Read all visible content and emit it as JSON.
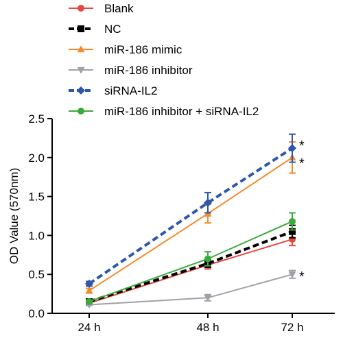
{
  "chart_data": {
    "type": "line",
    "categories": [
      "24 h",
      "48 h",
      "72 h"
    ],
    "ylabel": "OD Value (570nm)",
    "ylim": [
      0,
      2.5
    ],
    "yticks": [
      "0.0",
      "0.5",
      "1.0",
      "1.5",
      "2.0",
      "2.5"
    ],
    "legend_position": "top",
    "series": [
      {
        "name": "Blank",
        "values": [
          0.13,
          0.62,
          0.95
        ],
        "errors": [
          0.02,
          0.05,
          0.08
        ],
        "color": "#e8473f",
        "marker": "circle",
        "dashed": false
      },
      {
        "name": "NC",
        "values": [
          0.15,
          0.64,
          1.05
        ],
        "errors": [
          0.02,
          0.05,
          0.08
        ],
        "color": "#000000",
        "marker": "square",
        "dashed": true
      },
      {
        "name": "miR-186 mimic",
        "values": [
          0.29,
          1.28,
          2.0
        ],
        "errors": [
          0.03,
          0.12,
          0.2
        ],
        "color": "#f5892a",
        "marker": "triangle-up",
        "dashed": false
      },
      {
        "name": "miR-186 inhibitor",
        "values": [
          0.11,
          0.2,
          0.5
        ],
        "errors": [
          0.01,
          0.04,
          0.05
        ],
        "color": "#a0a0a8",
        "marker": "triangle-down",
        "dashed": false
      },
      {
        "name": "siRNA-IL2",
        "values": [
          0.38,
          1.42,
          2.12
        ],
        "errors": [
          0.03,
          0.13,
          0.18
        ],
        "color": "#2d57a8",
        "marker": "diamond",
        "dashed": true
      },
      {
        "name": "miR-186 inhibitor + siRNA-IL2",
        "values": [
          0.15,
          0.7,
          1.18
        ],
        "errors": [
          0.02,
          0.09,
          0.11
        ],
        "color": "#3aaa3a",
        "marker": "circle",
        "dashed": false
      }
    ],
    "annotations": [
      {
        "text": "*",
        "category": "72 h",
        "value": 2.2
      },
      {
        "text": "*",
        "category": "72 h",
        "value": 1.97
      },
      {
        "text": "*",
        "category": "72 h",
        "value": 0.52
      }
    ]
  }
}
